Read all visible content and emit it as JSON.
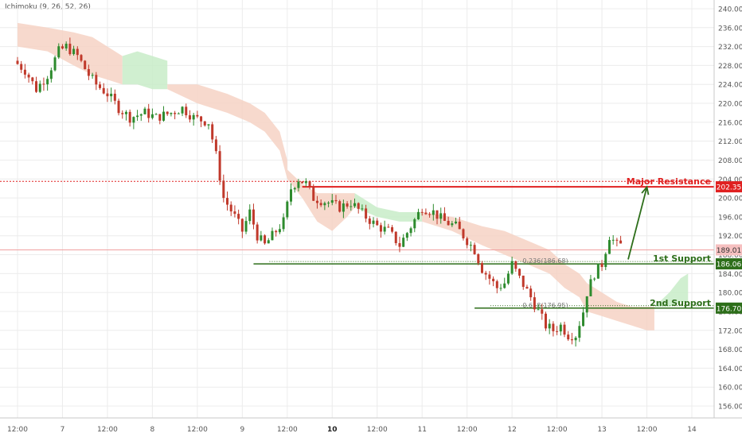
{
  "indicator_label": "Ichimoku (9, 26, 52, 26)",
  "colors": {
    "up": "#2e8b2e",
    "down": "#c0392b",
    "cloud_bull": "#c8ecc8",
    "cloud_bear": "#f6d2c4",
    "resistance": "#e02020",
    "support": "#2d6e1a",
    "price_line": "#f0a0a0",
    "grid": "#ececec",
    "axis_text": "#555555"
  },
  "chart_data": {
    "type": "candlestick",
    "title": "",
    "xlabel": "",
    "ylabel": "",
    "ylim": [
      154,
      242
    ],
    "y_ticks": [
      "240.00",
      "236.00",
      "232.00",
      "228.00",
      "224.00",
      "220.00",
      "216.00",
      "212.00",
      "208.00",
      "204.00",
      "200.00",
      "196.00",
      "192.00",
      "188.00",
      "184.00",
      "180.00",
      "176.00",
      "172.00",
      "168.00",
      "164.00",
      "160.00",
      "156.00"
    ],
    "x_ticks": [
      {
        "label": "12:00",
        "bold": false,
        "t": 0
      },
      {
        "label": "7",
        "bold": false,
        "t": 12
      },
      {
        "label": "12:00",
        "bold": false,
        "t": 24
      },
      {
        "label": "8",
        "bold": false,
        "t": 36
      },
      {
        "label": "12:00",
        "bold": false,
        "t": 48
      },
      {
        "label": "9",
        "bold": false,
        "t": 60
      },
      {
        "label": "12:00",
        "bold": false,
        "t": 72
      },
      {
        "label": "10",
        "bold": true,
        "t": 84
      },
      {
        "label": "12:00",
        "bold": false,
        "t": 96
      },
      {
        "label": "11",
        "bold": false,
        "t": 108
      },
      {
        "label": "12:00",
        "bold": false,
        "t": 120
      },
      {
        "label": "12",
        "bold": false,
        "t": 132
      },
      {
        "label": "12:00",
        "bold": false,
        "t": 144
      },
      {
        "label": "13",
        "bold": false,
        "t": 156
      },
      {
        "label": "12:00",
        "bold": false,
        "t": 168
      },
      {
        "label": "14",
        "bold": false,
        "t": 180
      }
    ],
    "price_path": [
      [
        0,
        229
      ],
      [
        3,
        227
      ],
      [
        6,
        223
      ],
      [
        9,
        226
      ],
      [
        12,
        231
      ],
      [
        14,
        232
      ],
      [
        17,
        230
      ],
      [
        20,
        226
      ],
      [
        22,
        224
      ],
      [
        25,
        222
      ],
      [
        28,
        219
      ],
      [
        31,
        217
      ],
      [
        35,
        218
      ],
      [
        38,
        217
      ],
      [
        42,
        218
      ],
      [
        45,
        219
      ],
      [
        48,
        217
      ],
      [
        52,
        216
      ],
      [
        54,
        209
      ],
      [
        56,
        200
      ],
      [
        59,
        196
      ],
      [
        61,
        193
      ],
      [
        63,
        197
      ],
      [
        65,
        192
      ],
      [
        67,
        190
      ],
      [
        69,
        192
      ],
      [
        72,
        195
      ],
      [
        74,
        202
      ],
      [
        76,
        204
      ],
      [
        78,
        203
      ],
      [
        80,
        200
      ],
      [
        84,
        199
      ],
      [
        87,
        198
      ],
      [
        90,
        199
      ],
      [
        94,
        196
      ],
      [
        97,
        194
      ],
      [
        100,
        193
      ],
      [
        103,
        190
      ],
      [
        106,
        194
      ],
      [
        109,
        198
      ],
      [
        112,
        197
      ],
      [
        115,
        195
      ],
      [
        118,
        194
      ],
      [
        121,
        191
      ],
      [
        123,
        189
      ],
      [
        125,
        185
      ],
      [
        127,
        183
      ],
      [
        129,
        181
      ],
      [
        131,
        182
      ],
      [
        133,
        186
      ],
      [
        135,
        183
      ],
      [
        138,
        179
      ],
      [
        140,
        176
      ],
      [
        142,
        173
      ],
      [
        144,
        172
      ],
      [
        146,
        173
      ],
      [
        148,
        171
      ],
      [
        150,
        171
      ],
      [
        152,
        176
      ],
      [
        153,
        180
      ],
      [
        155,
        184
      ],
      [
        157,
        186
      ],
      [
        159,
        192
      ],
      [
        160,
        191
      ],
      [
        161,
        190
      ]
    ],
    "levels": [
      {
        "name": "Major Resistance",
        "value": 202.35,
        "price_label": "202.35",
        "t_start": 76
      },
      {
        "name": "1st Support",
        "value": 186.06,
        "price_label": "186.06",
        "t_start": 63,
        "fib_label": "0.236(186.68)"
      },
      {
        "name": "2nd Support",
        "value": 176.7,
        "price_label": "176.70",
        "t_start": 122,
        "fib_label": "0.618(176.95)"
      }
    ],
    "current_price": {
      "value": 189.01,
      "label": "189.01"
    },
    "dotted_resistance": 203.5,
    "projection_arrow": {
      "from": [
        163,
        187
      ],
      "to": [
        168,
        202.3
      ]
    },
    "cloud": [
      {
        "kind": "bear",
        "t0": 0,
        "t1": 28,
        "upper": [
          [
            0,
            237
          ],
          [
            8,
            236
          ],
          [
            15,
            235
          ],
          [
            20,
            234
          ],
          [
            24,
            232
          ],
          [
            28,
            230
          ]
        ],
        "lower": [
          [
            0,
            232
          ],
          [
            8,
            231
          ],
          [
            15,
            228
          ],
          [
            20,
            226
          ],
          [
            24,
            225
          ],
          [
            28,
            224
          ]
        ]
      },
      {
        "kind": "bull",
        "t0": 28,
        "t1": 40,
        "upper": [
          [
            28,
            230
          ],
          [
            32,
            231
          ],
          [
            36,
            230
          ],
          [
            40,
            229
          ]
        ],
        "lower": [
          [
            28,
            224
          ],
          [
            32,
            224
          ],
          [
            36,
            223
          ],
          [
            40,
            223
          ]
        ]
      },
      {
        "kind": "bear",
        "t0": 40,
        "t1": 72,
        "upper": [
          [
            40,
            224
          ],
          [
            48,
            224
          ],
          [
            56,
            222
          ],
          [
            62,
            220
          ],
          [
            66,
            218
          ],
          [
            70,
            214
          ],
          [
            72,
            208
          ]
        ],
        "lower": [
          [
            40,
            223
          ],
          [
            48,
            220
          ],
          [
            56,
            218
          ],
          [
            62,
            216
          ],
          [
            66,
            214
          ],
          [
            70,
            210
          ],
          [
            72,
            204
          ]
        ]
      },
      {
        "kind": "bear",
        "t0": 72,
        "t1": 90,
        "upper": [
          [
            72,
            206
          ],
          [
            76,
            203
          ],
          [
            80,
            201
          ],
          [
            84,
            201
          ],
          [
            88,
            201
          ],
          [
            90,
            201
          ]
        ],
        "lower": [
          [
            72,
            204
          ],
          [
            76,
            200
          ],
          [
            80,
            195
          ],
          [
            84,
            193
          ],
          [
            88,
            196
          ],
          [
            90,
            198
          ]
        ]
      },
      {
        "kind": "bull",
        "t0": 90,
        "t1": 108,
        "upper": [
          [
            90,
            201
          ],
          [
            96,
            198
          ],
          [
            102,
            197
          ],
          [
            108,
            197
          ]
        ],
        "lower": [
          [
            90,
            198
          ],
          [
            96,
            196
          ],
          [
            102,
            195
          ],
          [
            108,
            195
          ]
        ]
      },
      {
        "kind": "bear",
        "t0": 108,
        "t1": 152,
        "upper": [
          [
            108,
            197
          ],
          [
            116,
            196
          ],
          [
            124,
            194
          ],
          [
            130,
            193
          ],
          [
            136,
            191
          ],
          [
            142,
            189
          ],
          [
            146,
            186
          ],
          [
            150,
            184
          ],
          [
            152,
            182
          ]
        ],
        "lower": [
          [
            108,
            195
          ],
          [
            116,
            193
          ],
          [
            124,
            190
          ],
          [
            130,
            188
          ],
          [
            136,
            186
          ],
          [
            142,
            184
          ],
          [
            146,
            181
          ],
          [
            150,
            179
          ],
          [
            152,
            176
          ]
        ]
      },
      {
        "kind": "bear",
        "t0": 152,
        "t1": 170,
        "upper": [
          [
            152,
            182
          ],
          [
            156,
            180
          ],
          [
            160,
            178
          ],
          [
            164,
            177
          ],
          [
            168,
            177
          ],
          [
            170,
            177
          ]
        ],
        "lower": [
          [
            152,
            176
          ],
          [
            156,
            175
          ],
          [
            160,
            174
          ],
          [
            164,
            173
          ],
          [
            168,
            172
          ],
          [
            170,
            172
          ]
        ]
      },
      {
        "kind": "bull",
        "t0": 170,
        "t1": 179,
        "upper": [
          [
            170,
            177
          ],
          [
            174,
            180
          ],
          [
            177,
            183
          ],
          [
            179,
            184
          ]
        ],
        "lower": [
          [
            170,
            177
          ],
          [
            174,
            177
          ],
          [
            177,
            178
          ],
          [
            179,
            178
          ]
        ]
      }
    ]
  }
}
